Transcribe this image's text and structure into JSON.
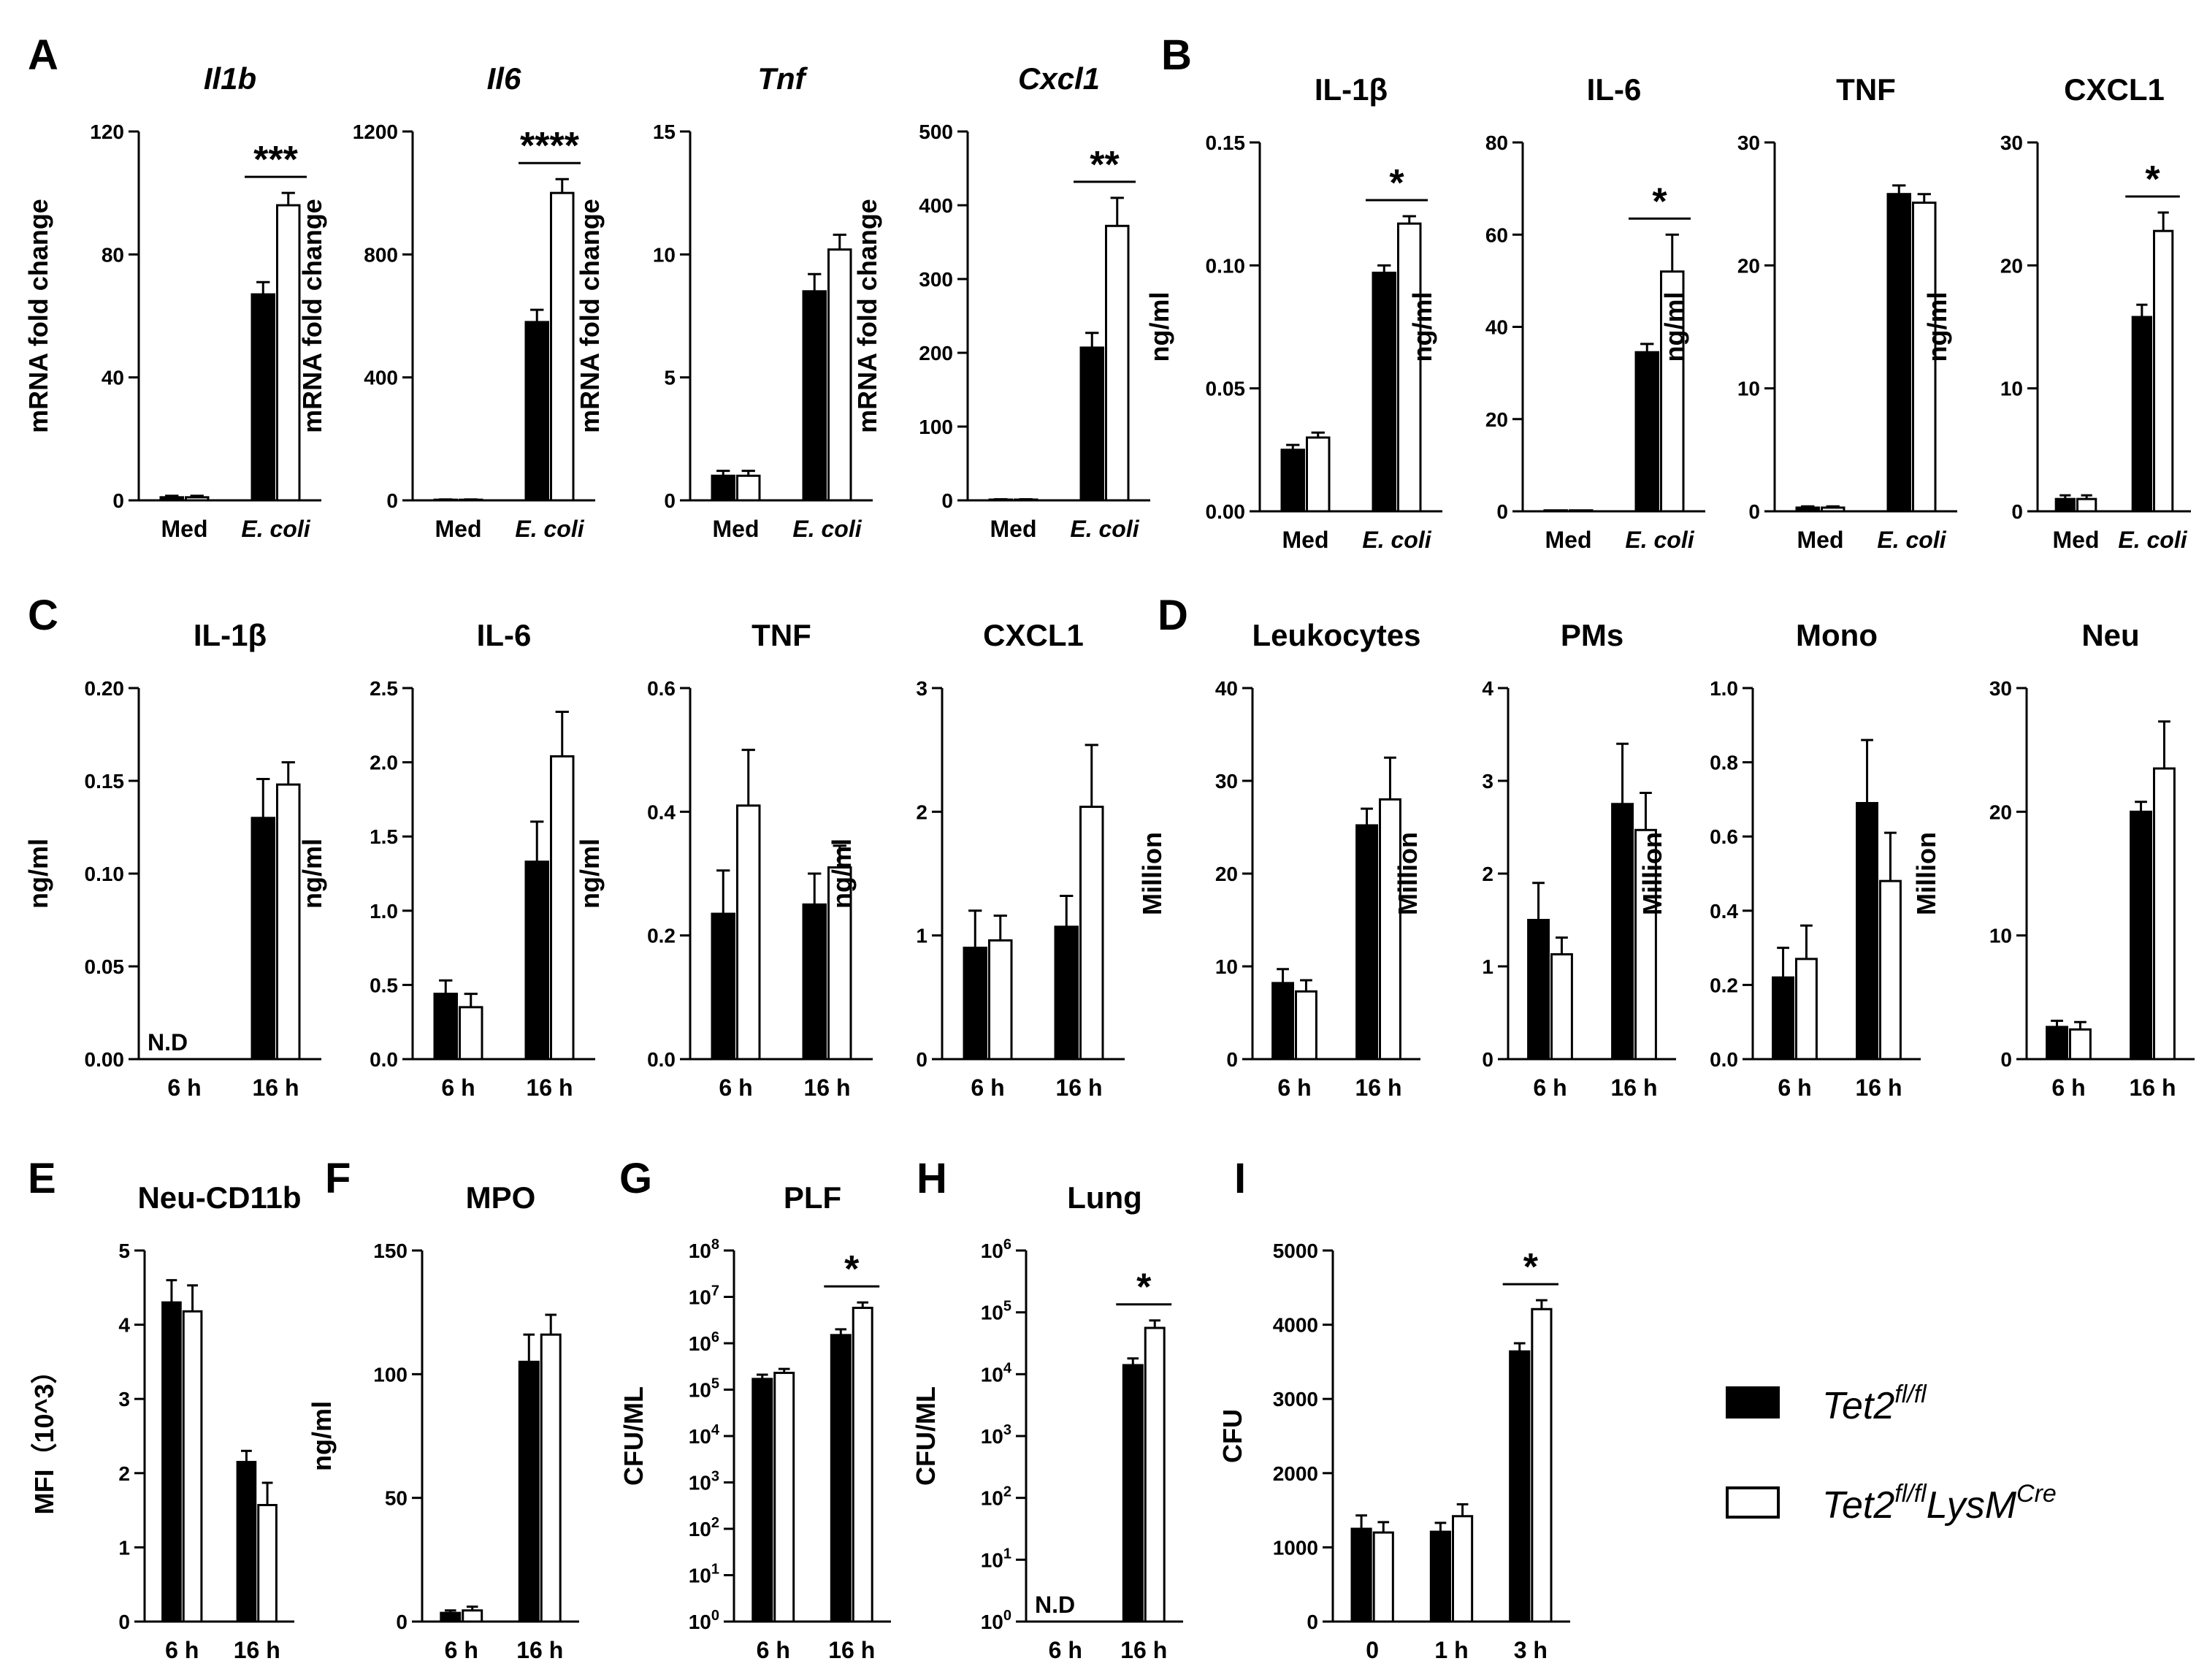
{
  "legend": {
    "entries": [
      {
        "name": "Tet2",
        "sup": "fl/fl",
        "suffix": "",
        "suffix_sup": "",
        "color": "#000000"
      },
      {
        "name": "Tet2",
        "sup": "fl/fl",
        "suffix": "LysM",
        "suffix_sup": "Cre",
        "color": "#ffffff"
      }
    ]
  },
  "chart_data": [
    {
      "id": "A1",
      "panel": "A",
      "type": "bar",
      "title": "Il1b",
      "title_italic": true,
      "ylabel": "mRNA fold change",
      "ylim": [
        0,
        120
      ],
      "yticks": [
        "0",
        "40",
        "80",
        "120"
      ],
      "categories": [
        "Med",
        "E. coli"
      ],
      "categories_italic": [
        false,
        true
      ],
      "series": [
        {
          "name": "Tet2fl/fl",
          "values": [
            1,
            67
          ],
          "err": [
            0.5,
            4
          ]
        },
        {
          "name": "Tet2fl/flLysMCre",
          "values": [
            1,
            96
          ],
          "err": [
            0.5,
            4
          ]
        }
      ],
      "sig": [
        {
          "category": 1,
          "label": "***"
        }
      ]
    },
    {
      "id": "A2",
      "type": "bar",
      "title": "Il6",
      "title_italic": true,
      "ylabel": "mRNA fold change",
      "ylim": [
        0,
        1200
      ],
      "yticks": [
        "0",
        "400",
        "800",
        "1200"
      ],
      "categories": [
        "Med",
        "E. coli"
      ],
      "categories_italic": [
        false,
        true
      ],
      "series": [
        {
          "name": "Tet2fl/fl",
          "values": [
            2,
            580
          ],
          "err": [
            1,
            40
          ]
        },
        {
          "name": "Tet2fl/flLysMCre",
          "values": [
            2,
            1000
          ],
          "err": [
            1,
            45
          ]
        }
      ],
      "sig": [
        {
          "category": 1,
          "label": "****"
        }
      ]
    },
    {
      "id": "A3",
      "type": "bar",
      "title": "Tnf",
      "title_italic": true,
      "ylabel": "mRNA fold change",
      "ylim": [
        0,
        15
      ],
      "yticks": [
        "0",
        "5",
        "10",
        "15"
      ],
      "categories": [
        "Med",
        "E. coli"
      ],
      "categories_italic": [
        false,
        true
      ],
      "series": [
        {
          "name": "Tet2fl/fl",
          "values": [
            1.0,
            8.5
          ],
          "err": [
            0.2,
            0.7
          ]
        },
        {
          "name": "Tet2fl/flLysMCre",
          "values": [
            1.0,
            10.2
          ],
          "err": [
            0.2,
            0.6
          ]
        }
      ],
      "sig": []
    },
    {
      "id": "A4",
      "type": "bar",
      "title": "Cxcl1",
      "title_italic": true,
      "ylabel": "mRNA fold change",
      "ylim": [
        0,
        500
      ],
      "yticks": [
        "0",
        "100",
        "200",
        "300",
        "400",
        "500"
      ],
      "categories": [
        "Med",
        "E. coli"
      ],
      "categories_italic": [
        false,
        true
      ],
      "series": [
        {
          "name": "Tet2fl/fl",
          "values": [
            1,
            207
          ],
          "err": [
            0.5,
            20
          ]
        },
        {
          "name": "Tet2fl/flLysMCre",
          "values": [
            1,
            372
          ],
          "err": [
            0.5,
            38
          ]
        }
      ],
      "sig": [
        {
          "category": 1,
          "label": "**"
        }
      ]
    },
    {
      "id": "B1",
      "panel": "B",
      "type": "bar",
      "title": "IL-1β",
      "title_italic": false,
      "ylabel": "ng/ml",
      "ylim": [
        0,
        0.15
      ],
      "yticks": [
        "0.00",
        "0.05",
        "0.10",
        "0.15"
      ],
      "categories": [
        "Med",
        "E. coli"
      ],
      "categories_italic": [
        false,
        true
      ],
      "series": [
        {
          "name": "Tet2fl/fl",
          "values": [
            0.025,
            0.097
          ],
          "err": [
            0.002,
            0.003
          ]
        },
        {
          "name": "Tet2fl/flLysMCre",
          "values": [
            0.03,
            0.117
          ],
          "err": [
            0.002,
            0.003
          ]
        }
      ],
      "sig": [
        {
          "category": 1,
          "label": "*"
        }
      ]
    },
    {
      "id": "B2",
      "type": "bar",
      "title": "IL-6",
      "title_italic": false,
      "ylabel": "ng/ml",
      "ylim": [
        0,
        80
      ],
      "yticks": [
        "0",
        "20",
        "40",
        "60",
        "80"
      ],
      "categories": [
        "Med",
        "E. coli"
      ],
      "categories_italic": [
        false,
        true
      ],
      "series": [
        {
          "name": "Tet2fl/fl",
          "values": [
            0.2,
            34.5
          ],
          "err": [
            0,
            1.8
          ]
        },
        {
          "name": "Tet2fl/flLysMCre",
          "values": [
            0.2,
            52
          ],
          "err": [
            0,
            8
          ]
        }
      ],
      "sig": [
        {
          "category": 1,
          "label": "*"
        }
      ]
    },
    {
      "id": "B3",
      "type": "bar",
      "title": "TNF",
      "title_italic": false,
      "ylabel": "ng/ml",
      "ylim": [
        0,
        30
      ],
      "yticks": [
        "0",
        "10",
        "20",
        "30"
      ],
      "categories": [
        "Med",
        "E. coli"
      ],
      "categories_italic": [
        false,
        true
      ],
      "series": [
        {
          "name": "Tet2fl/fl",
          "values": [
            0.3,
            25.8
          ],
          "err": [
            0.1,
            0.7
          ]
        },
        {
          "name": "Tet2fl/flLysMCre",
          "values": [
            0.3,
            25.1
          ],
          "err": [
            0.1,
            0.7
          ]
        }
      ],
      "sig": []
    },
    {
      "id": "B4",
      "type": "bar",
      "title": "CXCL1",
      "title_italic": false,
      "ylabel": "ng/ml",
      "ylim": [
        0,
        30
      ],
      "yticks": [
        "0",
        "10",
        "20",
        "30"
      ],
      "categories": [
        "Med",
        "E. coli"
      ],
      "categories_italic": [
        false,
        true
      ],
      "series": [
        {
          "name": "Tet2fl/fl",
          "values": [
            1.0,
            15.8
          ],
          "err": [
            0.3,
            1.0
          ]
        },
        {
          "name": "Tet2fl/flLysMCre",
          "values": [
            1.0,
            22.8
          ],
          "err": [
            0.3,
            1.5
          ]
        }
      ],
      "sig": [
        {
          "category": 1,
          "label": "*"
        }
      ]
    },
    {
      "id": "C1",
      "panel": "C",
      "type": "bar",
      "title": "IL-1β",
      "title_italic": false,
      "ylabel": "ng/ml",
      "ylim": [
        0,
        0.2
      ],
      "yticks": [
        "0.00",
        "0.05",
        "0.10",
        "0.15",
        "0.20"
      ],
      "categories": [
        "6 h",
        "16 h"
      ],
      "categories_italic": [
        false,
        false
      ],
      "series": [
        {
          "name": "Tet2fl/fl",
          "values": [
            0,
            0.13
          ],
          "err": [
            0,
            0.021
          ]
        },
        {
          "name": "Tet2fl/flLysMCre",
          "values": [
            0,
            0.148
          ],
          "err": [
            0,
            0.012
          ]
        }
      ],
      "sig": [],
      "note": "N.D"
    },
    {
      "id": "C2",
      "type": "bar",
      "title": "IL-6",
      "title_italic": false,
      "ylabel": "ng/ml",
      "ylim": [
        0,
        2.5
      ],
      "yticks": [
        "0.0",
        "0.5",
        "1.0",
        "1.5",
        "2.0",
        "2.5"
      ],
      "categories": [
        "6 h",
        "16 h"
      ],
      "categories_italic": [
        false,
        false
      ],
      "series": [
        {
          "name": "Tet2fl/fl",
          "values": [
            0.44,
            1.33
          ],
          "err": [
            0.09,
            0.27
          ]
        },
        {
          "name": "Tet2fl/flLysMCre",
          "values": [
            0.35,
            2.04
          ],
          "err": [
            0.09,
            0.3
          ]
        }
      ],
      "sig": []
    },
    {
      "id": "C3",
      "type": "bar",
      "title": "TNF",
      "title_italic": false,
      "ylabel": "ng/ml",
      "ylim": [
        0,
        0.6
      ],
      "yticks": [
        "0.0",
        "0.2",
        "0.4",
        "0.6"
      ],
      "categories": [
        "6 h",
        "16 h"
      ],
      "categories_italic": [
        false,
        false
      ],
      "series": [
        {
          "name": "Tet2fl/fl",
          "values": [
            0.235,
            0.25
          ],
          "err": [
            0.07,
            0.05
          ]
        },
        {
          "name": "Tet2fl/flLysMCre",
          "values": [
            0.41,
            0.31
          ],
          "err": [
            0.09,
            0.035
          ]
        }
      ],
      "sig": []
    },
    {
      "id": "C4",
      "type": "bar",
      "title": "CXCL1",
      "title_italic": false,
      "ylabel": "ng/ml",
      "ylim": [
        0,
        3
      ],
      "yticks": [
        "0",
        "1",
        "2",
        "3"
      ],
      "categories": [
        "6 h",
        "16 h"
      ],
      "categories_italic": [
        false,
        false
      ],
      "series": [
        {
          "name": "Tet2fl/fl",
          "values": [
            0.9,
            1.07
          ],
          "err": [
            0.3,
            0.25
          ]
        },
        {
          "name": "Tet2fl/flLysMCre",
          "values": [
            0.96,
            2.04
          ],
          "err": [
            0.2,
            0.5
          ]
        }
      ],
      "sig": []
    },
    {
      "id": "D1",
      "panel": "D",
      "type": "bar",
      "title": "Leukocytes",
      "title_italic": false,
      "ylabel": "Million",
      "ylim": [
        0,
        40
      ],
      "yticks": [
        "0",
        "10",
        "20",
        "30",
        "40"
      ],
      "categories": [
        "6 h",
        "16 h"
      ],
      "categories_italic": [
        false,
        false
      ],
      "series": [
        {
          "name": "Tet2fl/fl",
          "values": [
            8.2,
            25.2
          ],
          "err": [
            1.5,
            1.8
          ]
        },
        {
          "name": "Tet2fl/flLysMCre",
          "values": [
            7.3,
            28
          ],
          "err": [
            1.2,
            4.5
          ]
        }
      ],
      "sig": []
    },
    {
      "id": "D2",
      "type": "bar",
      "title": "PMs",
      "title_italic": false,
      "ylabel": "Million",
      "ylim": [
        0,
        4
      ],
      "yticks": [
        "0",
        "1",
        "2",
        "3",
        "4"
      ],
      "categories": [
        "6 h",
        "16 h"
      ],
      "categories_italic": [
        false,
        false
      ],
      "series": [
        {
          "name": "Tet2fl/fl",
          "values": [
            1.5,
            2.75
          ],
          "err": [
            0.4,
            0.65
          ]
        },
        {
          "name": "Tet2fl/flLysMCre",
          "values": [
            1.13,
            2.47
          ],
          "err": [
            0.18,
            0.4
          ]
        }
      ],
      "sig": []
    },
    {
      "id": "D3",
      "type": "bar",
      "title": "Mono",
      "title_italic": false,
      "ylabel": "Million",
      "ylim": [
        0,
        1.0
      ],
      "yticks": [
        "0.0",
        "0.2",
        "0.4",
        "0.6",
        "0.8",
        "1.0"
      ],
      "categories": [
        "6 h",
        "16 h"
      ],
      "categories_italic": [
        false,
        false
      ],
      "series": [
        {
          "name": "Tet2fl/fl",
          "values": [
            0.22,
            0.69
          ],
          "err": [
            0.08,
            0.17
          ]
        },
        {
          "name": "Tet2fl/flLysMCre",
          "values": [
            0.27,
            0.48
          ],
          "err": [
            0.09,
            0.13
          ]
        }
      ],
      "sig": []
    },
    {
      "id": "D4",
      "type": "bar",
      "title": "Neu",
      "title_italic": false,
      "ylabel": "Million",
      "ylim": [
        0,
        30
      ],
      "yticks": [
        "0",
        "10",
        "20",
        "30"
      ],
      "categories": [
        "6 h",
        "16 h"
      ],
      "categories_italic": [
        false,
        false
      ],
      "series": [
        {
          "name": "Tet2fl/fl",
          "values": [
            2.6,
            20
          ],
          "err": [
            0.5,
            0.8
          ]
        },
        {
          "name": "Tet2fl/flLysMCre",
          "values": [
            2.4,
            23.5
          ],
          "err": [
            0.6,
            3.8
          ]
        }
      ],
      "sig": []
    },
    {
      "id": "E",
      "panel": "E",
      "type": "bar",
      "title": "Neu-CD11b",
      "title_italic": false,
      "ylabel": "MFI（10^3）",
      "ylim": [
        0,
        5
      ],
      "yticks": [
        "0",
        "1",
        "2",
        "3",
        "4",
        "5"
      ],
      "categories": [
        "6 h",
        "16 h"
      ],
      "categories_italic": [
        false,
        false
      ],
      "series": [
        {
          "name": "Tet2fl/fl",
          "values": [
            4.3,
            2.15
          ],
          "err": [
            0.3,
            0.15
          ]
        },
        {
          "name": "Tet2fl/flLysMCre",
          "values": [
            4.18,
            1.57
          ],
          "err": [
            0.35,
            0.3
          ]
        }
      ],
      "sig": []
    },
    {
      "id": "F",
      "panel": "F",
      "type": "bar",
      "title": "MPO",
      "title_italic": false,
      "ylabel": "ng/ml",
      "ylim": [
        0,
        150
      ],
      "yticks": [
        "0",
        "50",
        "100",
        "150"
      ],
      "categories": [
        "6 h",
        "16 h"
      ],
      "categories_italic": [
        false,
        false
      ],
      "series": [
        {
          "name": "Tet2fl/fl",
          "values": [
            3.5,
            105
          ],
          "err": [
            1,
            11
          ]
        },
        {
          "name": "Tet2fl/flLysMCre",
          "values": [
            4.5,
            116
          ],
          "err": [
            1.5,
            8
          ]
        }
      ],
      "sig": []
    },
    {
      "id": "G",
      "panel": "G",
      "type": "bar",
      "title": "PLF",
      "title_italic": false,
      "ylabel": "CFU/ML",
      "yscale": "log",
      "ylim": [
        1,
        100000000
      ],
      "yticks": [
        "10^0",
        "10^1",
        "10^2",
        "10^3",
        "10^4",
        "10^5",
        "10^6",
        "10^7",
        "10^8"
      ],
      "categories": [
        "6 h",
        "16 h"
      ],
      "categories_italic": [
        false,
        false
      ],
      "series": [
        {
          "name": "Tet2fl/fl",
          "values": [
            170000,
            1500000
          ],
          "err": [
            40000,
            500000
          ]
        },
        {
          "name": "Tet2fl/flLysMCre",
          "values": [
            230000,
            5800000
          ],
          "err": [
            50000,
            1800000
          ]
        }
      ],
      "sig": [
        {
          "category": 1,
          "label": "*"
        }
      ]
    },
    {
      "id": "H",
      "panel": "H",
      "type": "bar",
      "title": "Lung",
      "title_italic": false,
      "ylabel": "CFU/ML",
      "yscale": "log",
      "ylim": [
        1,
        1000000
      ],
      "yticks": [
        "10^0",
        "10^1",
        "10^2",
        "10^3",
        "10^4",
        "10^5",
        "10^6"
      ],
      "categories": [
        "6 h",
        "16 h"
      ],
      "categories_italic": [
        false,
        false
      ],
      "series": [
        {
          "name": "Tet2fl/fl",
          "values": [
            1,
            14000
          ],
          "err": [
            0,
            4000
          ]
        },
        {
          "name": "Tet2fl/flLysMCre",
          "values": [
            1,
            56000
          ],
          "err": [
            0,
            18000
          ]
        }
      ],
      "sig": [
        {
          "category": 1,
          "label": "*"
        }
      ],
      "note": "N.D"
    },
    {
      "id": "I",
      "panel": "I",
      "type": "bar",
      "title": "",
      "title_italic": false,
      "ylabel": "CFU",
      "ylim": [
        0,
        5000
      ],
      "yticks": [
        "0",
        "1000",
        "2000",
        "3000",
        "4000",
        "5000"
      ],
      "categories": [
        "0",
        "1 h",
        "3 h"
      ],
      "categories_italic": [
        false,
        false,
        false
      ],
      "series": [
        {
          "name": "Tet2fl/fl",
          "values": [
            1250,
            1210,
            3640
          ],
          "err": [
            180,
            120,
            110
          ]
        },
        {
          "name": "Tet2fl/flLysMCre",
          "values": [
            1200,
            1420,
            4210
          ],
          "err": [
            140,
            160,
            120
          ]
        }
      ],
      "sig": [
        {
          "category": 2,
          "label": "*"
        }
      ]
    }
  ]
}
